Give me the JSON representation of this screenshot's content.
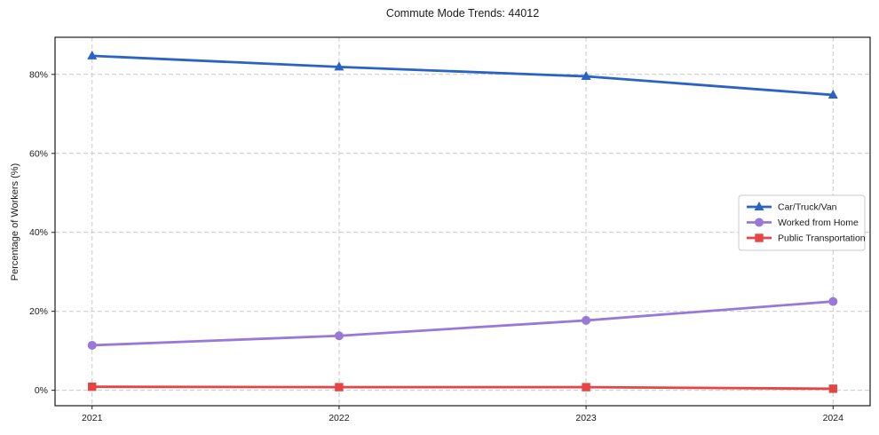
{
  "chart_data": {
    "type": "line",
    "title": "Commute Mode Trends: 44012",
    "xlabel": "",
    "ylabel": "Percentage of Workers (%)",
    "categories": [
      "2021",
      "2022",
      "2023",
      "2024"
    ],
    "x": [
      2021,
      2022,
      2023,
      2024
    ],
    "series": [
      {
        "name": "Car/Truck/Van",
        "color": "#2b63c5",
        "marker": "triangle",
        "values": [
          84.7,
          81.9,
          79.5,
          74.8
        ]
      },
      {
        "name": "Worked from Home",
        "color": "#9878d8",
        "marker": "circle",
        "values": [
          11.4,
          13.8,
          17.7,
          22.5
        ]
      },
      {
        "name": "Public Transportation",
        "color": "#e64545",
        "marker": "square",
        "values": [
          0.9,
          0.8,
          0.8,
          0.4
        ]
      }
    ],
    "yticks": [
      0,
      20,
      40,
      60,
      80
    ],
    "ytick_labels": [
      "0%",
      "20%",
      "40%",
      "60%",
      "80%"
    ],
    "ylim": [
      -3.9,
      89.4
    ],
    "xlim": [
      2020.85,
      2024.15
    ],
    "grid": true,
    "grid_style": "dashed",
    "grid_color": "#c9c9c9",
    "spine_color": "#1a1a1a",
    "legend_position": "center-right",
    "legend_labels": [
      "Car/Truck/Van",
      "Worked from Home",
      "Public Transportation"
    ]
  }
}
